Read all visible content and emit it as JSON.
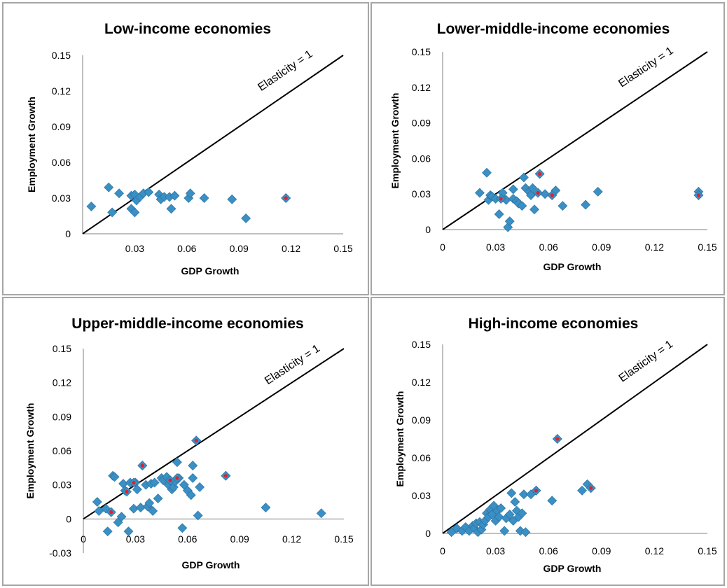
{
  "chart_data": [
    {
      "type": "scatter",
      "title": "Low-income economies",
      "xlabel": "GDP Growth",
      "ylabel": "Employment Growth",
      "xlim": [
        0,
        0.15
      ],
      "ylim": [
        0,
        0.15
      ],
      "xticks": [
        "0.03",
        "0.06",
        "0.09",
        "0.12",
        "0.15"
      ],
      "yticks": [
        "0",
        "0.03",
        "0.06",
        "0.09",
        "0.12",
        "0.15"
      ],
      "reference_line": {
        "label": "Elasticity = 1",
        "slope": 1
      },
      "marker_color": "#3a8fc4",
      "highlight_color": "#e4202a",
      "points": [
        [
          0.005,
          0.023
        ],
        [
          0.015,
          0.039
        ],
        [
          0.017,
          0.018
        ],
        [
          0.021,
          0.034
        ],
        [
          0.028,
          0.032
        ],
        [
          0.028,
          0.021
        ],
        [
          0.03,
          0.018
        ],
        [
          0.03,
          0.033
        ],
        [
          0.031,
          0.028
        ],
        [
          0.033,
          0.031
        ],
        [
          0.035,
          0.034
        ],
        [
          0.038,
          0.035
        ],
        [
          0.044,
          0.033
        ],
        [
          0.045,
          0.029
        ],
        [
          0.047,
          0.031
        ],
        [
          0.05,
          0.031
        ],
        [
          0.051,
          0.021
        ],
        [
          0.053,
          0.032
        ],
        [
          0.061,
          0.03
        ],
        [
          0.062,
          0.034
        ],
        [
          0.07,
          0.03
        ],
        [
          0.086,
          0.029
        ],
        [
          0.094,
          0.013
        ],
        [
          0.117,
          0.03
        ]
      ],
      "highlighted": [
        [
          0.117,
          0.03
        ]
      ]
    },
    {
      "type": "scatter",
      "title": "Lower-middle-income economies",
      "xlabel": "GDP Growth",
      "ylabel": "Employment Growth",
      "xlim": [
        0,
        0.15
      ],
      "ylim": [
        0,
        0.15
      ],
      "xticks": [
        "0",
        "0.03",
        "0.06",
        "0.09",
        "0.12",
        "0.15"
      ],
      "yticks": [
        "0",
        "0.03",
        "0.06",
        "0.09",
        "0.12",
        "0.15"
      ],
      "reference_line": {
        "label": "Elasticity = 1",
        "slope": 1
      },
      "marker_color": "#3a8fc4",
      "highlight_color": "#e4202a",
      "points": [
        [
          0.021,
          0.031
        ],
        [
          0.025,
          0.048
        ],
        [
          0.026,
          0.025
        ],
        [
          0.027,
          0.029
        ],
        [
          0.028,
          0.028
        ],
        [
          0.03,
          0.026
        ],
        [
          0.032,
          0.013
        ],
        [
          0.034,
          0.027
        ],
        [
          0.034,
          0.031
        ],
        [
          0.036,
          0.025
        ],
        [
          0.037,
          0.002
        ],
        [
          0.038,
          0.007
        ],
        [
          0.04,
          0.026
        ],
        [
          0.04,
          0.034
        ],
        [
          0.042,
          0.024
        ],
        [
          0.043,
          0.022
        ],
        [
          0.045,
          0.02
        ],
        [
          0.046,
          0.044
        ],
        [
          0.047,
          0.035
        ],
        [
          0.049,
          0.032
        ],
        [
          0.05,
          0.029
        ],
        [
          0.051,
          0.035
        ],
        [
          0.052,
          0.017
        ],
        [
          0.054,
          0.031
        ],
        [
          0.055,
          0.047
        ],
        [
          0.058,
          0.03
        ],
        [
          0.062,
          0.029
        ],
        [
          0.064,
          0.033
        ],
        [
          0.068,
          0.02
        ],
        [
          0.081,
          0.021
        ],
        [
          0.088,
          0.032
        ],
        [
          0.145,
          0.032
        ],
        [
          0.145,
          0.029
        ]
      ],
      "highlighted": [
        [
          0.033,
          0.026
        ],
        [
          0.055,
          0.047
        ],
        [
          0.054,
          0.031
        ],
        [
          0.062,
          0.029
        ],
        [
          0.145,
          0.029
        ]
      ]
    },
    {
      "type": "scatter",
      "title": "Upper-middle-income economies",
      "xlabel": "GDP Growth",
      "ylabel": "Employment Growth",
      "xlim": [
        0,
        0.15
      ],
      "ylim": [
        -0.03,
        0.15
      ],
      "xticks": [
        "0",
        "0.03",
        "0.06",
        "0.09",
        "0.12",
        "0.15"
      ],
      "yticks": [
        "-0.03",
        "0",
        "0.03",
        "0.06",
        "0.09",
        "0.12",
        "0.15"
      ],
      "reference_line": {
        "label": "Elasticity = 1",
        "slope": 1
      },
      "marker_color": "#3a8fc4",
      "highlight_color": "#e4202a",
      "points": [
        [
          0.008,
          0.015
        ],
        [
          0.009,
          0.007
        ],
        [
          0.013,
          0.009
        ],
        [
          0.014,
          -0.011
        ],
        [
          0.016,
          0.006
        ],
        [
          0.017,
          0.038
        ],
        [
          0.018,
          0.037
        ],
        [
          0.02,
          -0.003
        ],
        [
          0.022,
          0.002
        ],
        [
          0.023,
          0.031
        ],
        [
          0.024,
          0.025
        ],
        [
          0.026,
          -0.011
        ],
        [
          0.027,
          0.032
        ],
        [
          0.029,
          0.009
        ],
        [
          0.03,
          0.032
        ],
        [
          0.031,
          0.026
        ],
        [
          0.033,
          0.01
        ],
        [
          0.034,
          0.047
        ],
        [
          0.036,
          0.03
        ],
        [
          0.037,
          0.011
        ],
        [
          0.038,
          0.014
        ],
        [
          0.039,
          0.031
        ],
        [
          0.04,
          0.007
        ],
        [
          0.041,
          0.032
        ],
        [
          0.043,
          0.018
        ],
        [
          0.045,
          0.036
        ],
        [
          0.046,
          0.034
        ],
        [
          0.048,
          0.037
        ],
        [
          0.049,
          0.03
        ],
        [
          0.05,
          0.034
        ],
        [
          0.051,
          0.026
        ],
        [
          0.052,
          0.028
        ],
        [
          0.053,
          0.033
        ],
        [
          0.054,
          0.05
        ],
        [
          0.055,
          0.036
        ],
        [
          0.057,
          -0.008
        ],
        [
          0.058,
          0.03
        ],
        [
          0.06,
          0.025
        ],
        [
          0.062,
          0.021
        ],
        [
          0.063,
          0.036
        ],
        [
          0.063,
          0.047
        ],
        [
          0.065,
          0.069
        ],
        [
          0.066,
          0.003
        ],
        [
          0.067,
          0.028
        ],
        [
          0.082,
          0.038
        ],
        [
          0.105,
          0.01
        ],
        [
          0.137,
          0.005
        ]
      ],
      "highlighted": [
        [
          0.016,
          0.006
        ],
        [
          0.025,
          0.024
        ],
        [
          0.029,
          0.032
        ],
        [
          0.034,
          0.047
        ],
        [
          0.05,
          0.034
        ],
        [
          0.054,
          0.036
        ],
        [
          0.065,
          0.069
        ],
        [
          0.082,
          0.038
        ]
      ]
    },
    {
      "type": "scatter",
      "title": "High-income economies",
      "xlabel": "GDP Growth",
      "ylabel": "Employment Growth",
      "xlim": [
        0,
        0.15
      ],
      "ylim": [
        0,
        0.15
      ],
      "xticks": [
        "0",
        "0.03",
        "0.06",
        "0.09",
        "0.12",
        "0.15"
      ],
      "yticks": [
        "0",
        "0.03",
        "0.06",
        "0.09",
        "0.12",
        "0.15"
      ],
      "reference_line": {
        "label": "Elasticity = 1",
        "slope": 1
      },
      "marker_color": "#3a8fc4",
      "highlight_color": "#e4202a",
      "points": [
        [
          0.005,
          0.001
        ],
        [
          0.008,
          0.004
        ],
        [
          0.011,
          0.002
        ],
        [
          0.013,
          0.005
        ],
        [
          0.015,
          0.002
        ],
        [
          0.017,
          0.006
        ],
        [
          0.018,
          0.004
        ],
        [
          0.019,
          0.008
        ],
        [
          0.02,
          0.001
        ],
        [
          0.021,
          0.009
        ],
        [
          0.022,
          0.003
        ],
        [
          0.023,
          0.007
        ],
        [
          0.024,
          0.01
        ],
        [
          0.025,
          0.016
        ],
        [
          0.026,
          0.013
        ],
        [
          0.027,
          0.019
        ],
        [
          0.028,
          0.015
        ],
        [
          0.029,
          0.022
        ],
        [
          0.03,
          0.01
        ],
        [
          0.031,
          0.018
        ],
        [
          0.032,
          0.013
        ],
        [
          0.033,
          0.02
        ],
        [
          0.035,
          0.002
        ],
        [
          0.036,
          0.012
        ],
        [
          0.038,
          0.015
        ],
        [
          0.039,
          0.032
        ],
        [
          0.04,
          0.01
        ],
        [
          0.041,
          0.025
        ],
        [
          0.042,
          0.018
        ],
        [
          0.043,
          0.013
        ],
        [
          0.044,
          0.002
        ],
        [
          0.045,
          0.016
        ],
        [
          0.046,
          0.031
        ],
        [
          0.047,
          0.001
        ],
        [
          0.05,
          0.031
        ],
        [
          0.053,
          0.034
        ],
        [
          0.062,
          0.026
        ],
        [
          0.065,
          0.075
        ],
        [
          0.079,
          0.034
        ],
        [
          0.082,
          0.039
        ],
        [
          0.084,
          0.036
        ]
      ],
      "highlighted": [
        [
          0.053,
          0.034
        ],
        [
          0.065,
          0.075
        ],
        [
          0.084,
          0.036
        ]
      ]
    }
  ]
}
